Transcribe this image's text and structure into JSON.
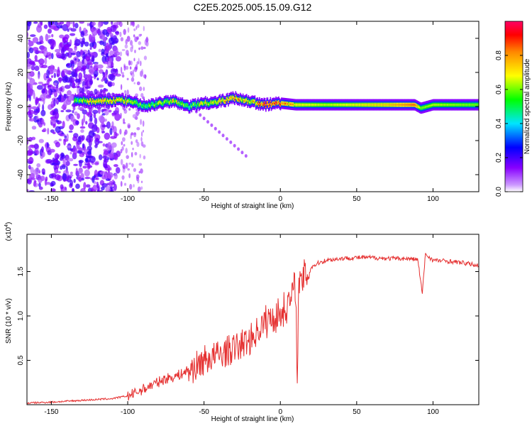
{
  "title": "C2E5.2025.005.15.09.G12",
  "colors": {
    "snr_line": "#e53030",
    "ridge_low": "#8a2be2",
    "colormap": [
      "#ffffff",
      "#cc99ff",
      "#8800ff",
      "#0000ff",
      "#00e5ff",
      "#00ff00",
      "#ffff00",
      "#ff0000",
      "#ff0066"
    ]
  },
  "chart_data": [
    {
      "type": "heatmap",
      "xlabel": "Height of straight line (km)",
      "ylabel": "Frequency (Hz)",
      "xlim": [
        -166,
        130
      ],
      "ylim": [
        -50,
        50
      ],
      "x_ticks": [
        -150,
        -100,
        -50,
        0,
        50,
        100
      ],
      "x_tick_labels": [
        "-150",
        "-100",
        "-50",
        "0",
        "50",
        "100"
      ],
      "y_ticks": [
        -40,
        -20,
        0,
        20,
        40
      ],
      "y_tick_labels": [
        "-40",
        "-20",
        "0",
        "20",
        "40"
      ],
      "colorbar": {
        "label": "Normalized spectral amplitude",
        "range": [
          0,
          1
        ],
        "ticks": [
          0.0,
          0.2,
          0.4,
          0.6,
          0.8
        ],
        "tick_labels": [
          "0.0",
          "0.2",
          "0.4",
          "0.6",
          "0.8"
        ]
      },
      "ridge": {
        "x": [
          -135,
          -125,
          -115,
          -105,
          -95,
          -88,
          -80,
          -70,
          -60,
          -50,
          -40,
          -30,
          -20,
          -10,
          0,
          10,
          30,
          50,
          70,
          88,
          92,
          100,
          130
        ],
        "frequency": [
          4,
          3,
          3,
          4,
          2,
          0,
          2,
          3,
          0,
          2,
          3,
          5,
          3,
          1,
          2,
          1,
          1,
          1,
          1,
          1,
          -1,
          1,
          1
        ],
        "amplitude": [
          0.5,
          0.7,
          0.75,
          0.7,
          0.6,
          0.55,
          0.6,
          0.7,
          0.55,
          0.65,
          0.7,
          0.8,
          0.7,
          0.9,
          0.85,
          0.7,
          0.65,
          0.7,
          0.75,
          0.85,
          0.6,
          0.65,
          0.6
        ]
      }
    },
    {
      "type": "line",
      "xlabel": "Height of straight line (km)",
      "ylabel": "SNR (10 * v/v)",
      "y_multiplier_label": "(x10",
      "y_multiplier_exp": "4",
      "xlim": [
        -166,
        130
      ],
      "ylim": [
        0.0,
        1.92
      ],
      "x_ticks": [
        -150,
        -100,
        -50,
        0,
        50,
        100
      ],
      "x_tick_labels": [
        "-150",
        "-100",
        "-50",
        "0",
        "50",
        "100"
      ],
      "y_ticks": [
        0.5,
        1.0,
        1.5
      ],
      "y_tick_labels": [
        "0.5",
        "1.0",
        "1.5"
      ],
      "series": [
        {
          "x": [
            -166,
            -150,
            -130,
            -120,
            -110,
            -100,
            -95,
            -90,
            -85,
            -80,
            -75,
            -70,
            -65,
            -60,
            -55,
            -50,
            -45,
            -40,
            -35,
            -30,
            -25,
            -20,
            -15,
            -10,
            -5,
            0,
            5,
            8,
            10,
            11,
            12,
            15,
            20,
            25,
            30,
            40,
            50,
            60,
            70,
            80,
            90,
            93,
            95,
            100,
            110,
            120,
            130
          ],
          "y": [
            0.02,
            0.03,
            0.05,
            0.06,
            0.07,
            0.1,
            0.14,
            0.18,
            0.22,
            0.26,
            0.3,
            0.32,
            0.35,
            0.4,
            0.45,
            0.52,
            0.55,
            0.58,
            0.62,
            0.65,
            0.7,
            0.75,
            0.85,
            0.95,
            1.0,
            1.05,
            1.15,
            1.25,
            1.4,
            0.35,
            1.3,
            1.45,
            1.55,
            1.6,
            1.63,
            1.65,
            1.66,
            1.66,
            1.65,
            1.65,
            1.64,
            1.25,
            1.7,
            1.63,
            1.62,
            1.6,
            1.57
          ]
        }
      ]
    }
  ]
}
